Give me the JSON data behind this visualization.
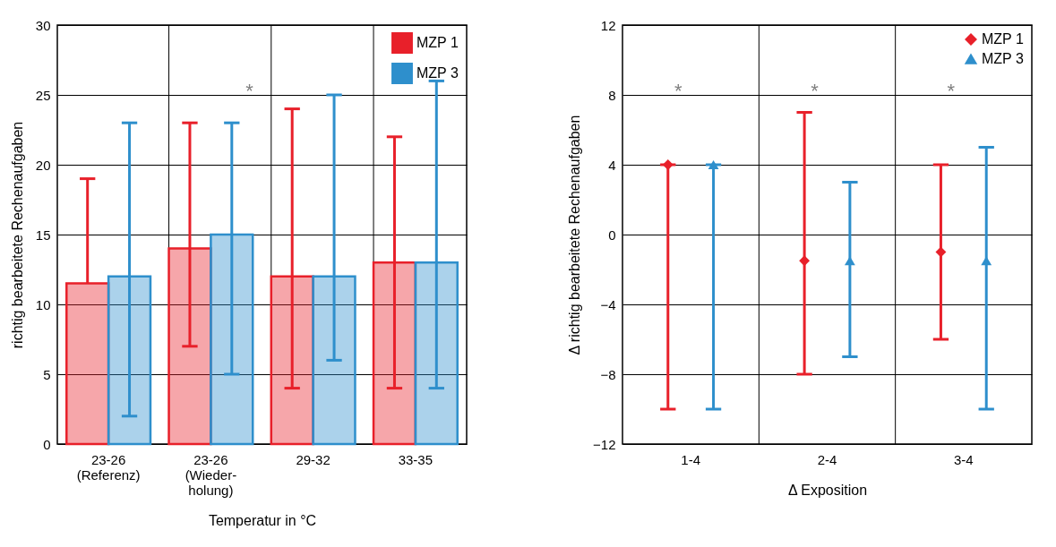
{
  "chart_data": [
    {
      "type": "bar",
      "xlabel": "Temperatur in °C",
      "ylabel": "richtig bearbeitete Rechenaufgaben",
      "categories": [
        "23-26\n(Referenz)",
        "23-26\n(Wieder-\nholung)",
        "29-32",
        "33-35"
      ],
      "series": [
        {
          "name": "MZP 1",
          "color": "#e8202a",
          "values": [
            11.5,
            14,
            12,
            13
          ],
          "errors": [
            [
              11.5,
              19
            ],
            [
              7,
              23
            ],
            [
              4,
              24
            ],
            [
              4,
              22
            ]
          ]
        },
        {
          "name": "MZP 3",
          "color": "#2e8fcc",
          "values": [
            12,
            15,
            12,
            13
          ],
          "errors": [
            [
              2,
              23
            ],
            [
              5,
              23
            ],
            [
              6,
              25
            ],
            [
              4,
              26
            ]
          ]
        }
      ],
      "ylim": [
        0,
        30
      ],
      "yticks": [
        0,
        5,
        10,
        15,
        20,
        25,
        30
      ],
      "grid": true,
      "legend": "top right",
      "annotations": [
        "*"
      ]
    },
    {
      "type": "scatter",
      "xlabel": "Δ Exposition",
      "ylabel": "Δ richtig bearbeitete Rechenaufgaben",
      "categories": [
        "1-4",
        "2-4",
        "3-4"
      ],
      "series": [
        {
          "name": "MZP 1",
          "color": "#e8202a",
          "marker": "diamond",
          "values": [
            4,
            -1.5,
            -1
          ],
          "errors": [
            [
              -10,
              4
            ],
            [
              -8,
              7
            ],
            [
              -6,
              4
            ]
          ]
        },
        {
          "name": "MZP 3",
          "color": "#2e8fcc",
          "marker": "triangle",
          "values": [
            4,
            -1.5,
            -1.5
          ],
          "errors": [
            [
              -10,
              4
            ],
            [
              -7,
              3
            ],
            [
              -10,
              5
            ]
          ]
        }
      ],
      "ylim": [
        -12,
        12
      ],
      "yticks": [
        -12,
        -8,
        -4,
        0,
        4,
        8,
        12
      ],
      "grid": true,
      "legend": "top right",
      "annotations": [
        "*",
        "*",
        "*"
      ]
    }
  ]
}
